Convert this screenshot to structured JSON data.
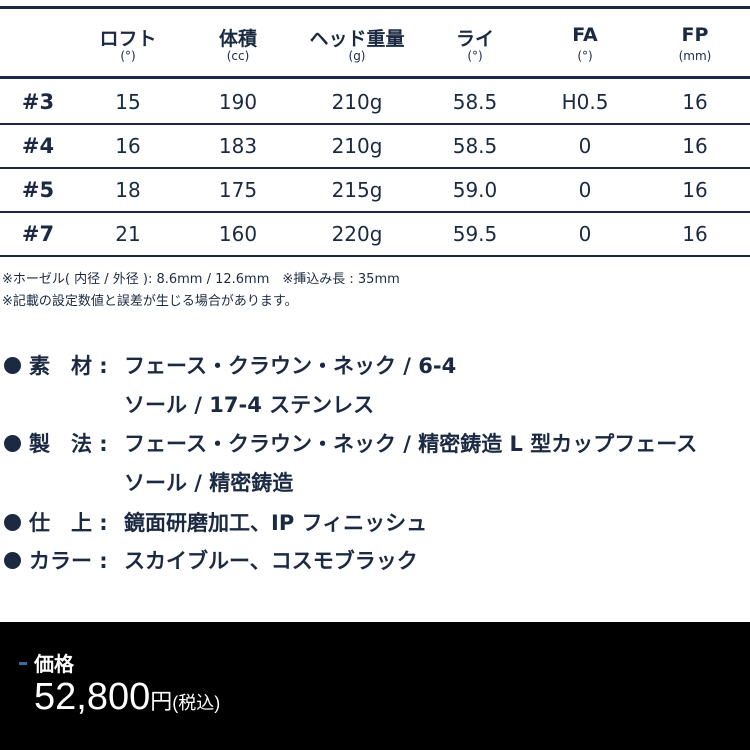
{
  "table": {
    "headers": [
      {
        "label": "ロフト",
        "unit": "(°)"
      },
      {
        "label": "体積",
        "unit": "(cc)"
      },
      {
        "label": "ヘッド重量",
        "unit": "(g)"
      },
      {
        "label": "ライ",
        "unit": "(°)"
      },
      {
        "label": "FA",
        "unit": "(°)"
      },
      {
        "label": "FP",
        "unit": "(mm)"
      }
    ],
    "rows": [
      {
        "label": "#3",
        "values": [
          "15",
          "190",
          "210g",
          "58.5",
          "H0.5",
          "16"
        ]
      },
      {
        "label": "#4",
        "values": [
          "16",
          "183",
          "210g",
          "58.5",
          "0",
          "16"
        ]
      },
      {
        "label": "#5",
        "values": [
          "18",
          "175",
          "215g",
          "59.0",
          "0",
          "16"
        ]
      },
      {
        "label": "#7",
        "values": [
          "21",
          "160",
          "220g",
          "59.5",
          "0",
          "16"
        ]
      }
    ]
  },
  "notes": [
    "※ホーゼル( 内径 / 外径 ): 8.6mm / 12.6mm　※挿込み長 : 35mm",
    "※記載の設定数値と誤差が生じる場合があります。"
  ],
  "specs": [
    {
      "label": "素　材 :",
      "lines": [
        "フェース・クラウン・ネック / 6-4",
        "ソール / 17-4 ステンレス"
      ]
    },
    {
      "label": "製　法 :",
      "lines": [
        "フェース・クラウン・ネック / 精密鋳造 L 型カップフェース",
        "ソール / 精密鋳造"
      ]
    },
    {
      "label": "仕　上 :",
      "lines": [
        " 鏡面研磨加工、IP フィニッシュ"
      ]
    },
    {
      "label": "カラー :",
      "lines": [
        " スカイブルー、コスモブラック"
      ]
    }
  ],
  "price": {
    "label": "価格",
    "amount": "52,800",
    "currency": "円",
    "tax": "(税込)"
  },
  "colors": {
    "text": "#1b2a42",
    "price_bg": "#000000",
    "accent": "#3c6aa8"
  }
}
